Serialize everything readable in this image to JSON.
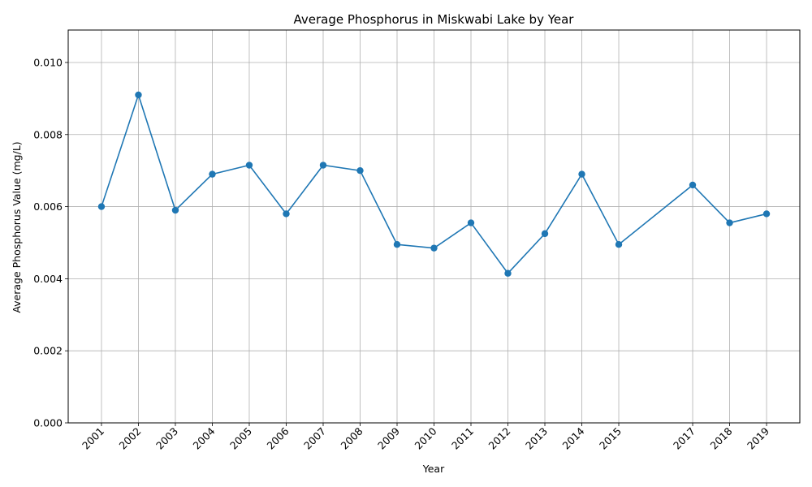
{
  "chart_data": {
    "type": "line",
    "title": "Average Phosphorus in Miskwabi Lake by Year",
    "xlabel": "Year",
    "ylabel": "Average Phosphorus Value (mg/L)",
    "x": [
      2001,
      2002,
      2003,
      2004,
      2005,
      2006,
      2007,
      2008,
      2009,
      2010,
      2011,
      2012,
      2013,
      2014,
      2015,
      2017,
      2018,
      2019
    ],
    "x_tick_labels": [
      "2001",
      "2002",
      "2003",
      "2004",
      "2005",
      "2006",
      "2007",
      "2008",
      "2009",
      "2010",
      "2011",
      "2012",
      "2013",
      "2014",
      "2015",
      "2017",
      "2018",
      "2019"
    ],
    "series": [
      {
        "values": [
          0.006,
          0.0091,
          0.0059,
          0.0069,
          0.00715,
          0.0058,
          0.00715,
          0.007,
          0.00495,
          0.00485,
          0.00555,
          0.00415,
          0.00525,
          0.0069,
          0.00495,
          0.0066,
          0.00555,
          0.0058
        ]
      }
    ],
    "xlim": [
      2000.1,
      2019.9
    ],
    "ylim": [
      0,
      0.0109
    ],
    "y_ticks": [
      0,
      0.002,
      0.004,
      0.006,
      0.008,
      0.01
    ],
    "y_tick_labels": [
      "0.000",
      "0.002",
      "0.004",
      "0.006",
      "0.008",
      "0.010"
    ],
    "grid": true,
    "line_color": "#1f77b4",
    "grid_color": "#b0b0b0"
  }
}
